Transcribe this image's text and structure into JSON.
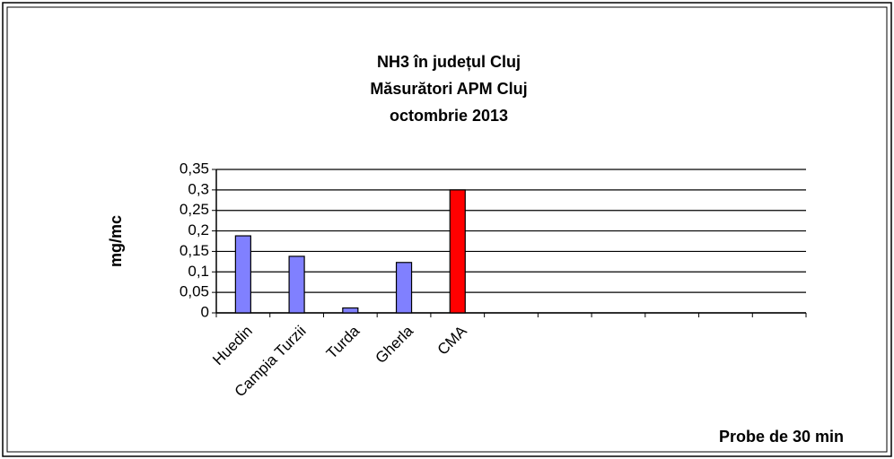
{
  "chart_data": {
    "type": "bar",
    "title": [
      "NH3 în județul Cluj",
      "Măsurători APM Cluj",
      "octombrie 2013"
    ],
    "y_label": "mg/mc",
    "x_label": "Probe de 30 min",
    "categories": [
      "Huedin",
      "Campia Turzii",
      "Turda",
      "Gherla",
      "CMA",
      null,
      null,
      null,
      null,
      null,
      null
    ],
    "values": [
      0.188,
      0.138,
      0.012,
      0.123,
      0.3,
      null,
      null,
      null,
      null,
      null,
      null
    ],
    "colors": [
      "#8080ff",
      "#8080ff",
      "#8080ff",
      "#8080ff",
      "#ff0000",
      null,
      null,
      null,
      null,
      null,
      null
    ],
    "ylim": [
      0,
      0.35
    ],
    "yticks": [
      0,
      {
        "value": 0.05,
        "label": "0,05"
      },
      {
        "value": 0.1,
        "label": "0,1"
      },
      {
        "value": 0.15,
        "label": "0,15"
      },
      {
        "value": 0.2,
        "label": "0,2"
      },
      {
        "value": 0.25,
        "label": "0,25"
      },
      {
        "value": 0.3,
        "label": "0,3"
      },
      {
        "value": 0.35,
        "label": "0,35"
      }
    ],
    "grid": true
  }
}
